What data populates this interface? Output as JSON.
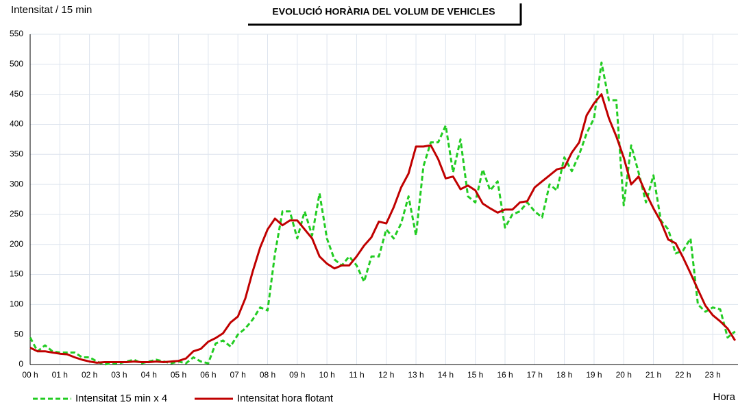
{
  "chart_data": {
    "type": "line",
    "title": "EVOLUCIÓ HORÀRIA DEL VOLUM  DE VEHICLES",
    "y_label": "Intensitat / 15 min",
    "x_label": "Hora",
    "x": [
      0,
      0.25,
      0.5,
      0.75,
      1,
      1.25,
      1.5,
      1.75,
      2,
      2.25,
      2.5,
      2.75,
      3,
      3.25,
      3.5,
      3.75,
      4,
      4.25,
      4.5,
      4.75,
      5,
      5.25,
      5.5,
      5.75,
      6,
      6.25,
      6.5,
      6.75,
      7,
      7.25,
      7.5,
      7.75,
      8,
      8.25,
      8.5,
      8.75,
      9,
      9.25,
      9.5,
      9.75,
      10,
      10.25,
      10.5,
      10.75,
      11,
      11.25,
      11.5,
      11.75,
      12,
      12.25,
      12.5,
      12.75,
      13,
      13.25,
      13.5,
      13.75,
      14,
      14.25,
      14.5,
      14.75,
      15,
      15.25,
      15.5,
      15.75,
      16,
      16.25,
      16.5,
      16.75,
      17,
      17.25,
      17.5,
      17.75,
      18,
      18.25,
      18.5,
      18.75,
      19,
      19.25,
      19.5,
      19.75,
      20,
      20.25,
      20.5,
      20.75,
      21,
      21.25,
      21.5,
      21.75,
      22,
      22.25,
      22.5,
      22.75,
      23,
      23.25,
      23.5,
      23.75
    ],
    "series": [
      {
        "name": "Intensitat 15 min x  4",
        "color": "#22cc22",
        "dashed": true,
        "values": [
          45,
          22,
          32,
          22,
          20,
          20,
          20,
          12,
          12,
          5,
          0,
          2,
          2,
          5,
          8,
          2,
          5,
          8,
          5,
          2,
          5,
          2,
          12,
          5,
          2,
          35,
          40,
          30,
          50,
          60,
          75,
          95,
          90,
          185,
          255,
          255,
          210,
          255,
          215,
          285,
          210,
          175,
          165,
          180,
          165,
          138,
          180,
          180,
          225,
          210,
          235,
          280,
          215,
          330,
          370,
          370,
          398,
          320,
          375,
          280,
          270,
          325,
          290,
          305,
          228,
          250,
          255,
          270,
          255,
          245,
          300,
          290,
          345,
          322,
          350,
          385,
          410,
          503,
          440,
          440,
          265,
          365,
          320,
          270,
          315,
          240,
          225,
          185,
          190,
          210,
          100,
          88,
          95,
          92,
          45,
          55
        ]
      },
      {
        "name": "Intensitat hora flotant",
        "color": "#c00000",
        "dashed": false,
        "values": [
          28,
          22,
          22,
          20,
          18,
          17,
          12,
          8,
          5,
          3,
          4,
          4,
          4,
          4,
          5,
          4,
          4,
          5,
          4,
          5,
          6,
          10,
          22,
          26,
          38,
          44,
          52,
          70,
          80,
          110,
          155,
          195,
          225,
          243,
          232,
          240,
          240,
          225,
          210,
          180,
          168,
          160,
          165,
          165,
          180,
          198,
          212,
          238,
          235,
          262,
          295,
          318,
          363,
          363,
          365,
          342,
          310,
          313,
          292,
          298,
          290,
          268,
          260,
          253,
          258,
          258,
          270,
          272,
          295,
          305,
          315,
          325,
          328,
          353,
          370,
          415,
          435,
          450,
          410,
          380,
          345,
          300,
          313,
          285,
          260,
          238,
          208,
          202,
          178,
          152,
          125,
          98,
          82,
          72,
          60,
          40
        ]
      }
    ],
    "xlim": [
      0,
      23.85
    ],
    "xticks": [
      {
        "value": 0,
        "label": "00 h"
      },
      {
        "value": 1,
        "label": "01 h"
      },
      {
        "value": 2,
        "label": "02 h"
      },
      {
        "value": 3,
        "label": "03 h"
      },
      {
        "value": 4,
        "label": "04 h"
      },
      {
        "value": 5,
        "label": "05 h"
      },
      {
        "value": 6,
        "label": "06 h"
      },
      {
        "value": 7,
        "label": "07 h"
      },
      {
        "value": 8,
        "label": "08 h"
      },
      {
        "value": 9,
        "label": "09 h"
      },
      {
        "value": 10,
        "label": "10 h"
      },
      {
        "value": 11,
        "label": "11 h"
      },
      {
        "value": 12,
        "label": "12 h"
      },
      {
        "value": 13,
        "label": "13 h"
      },
      {
        "value": 14,
        "label": "14 h"
      },
      {
        "value": 15,
        "label": "15 h"
      },
      {
        "value": 16,
        "label": "16 h"
      },
      {
        "value": 17,
        "label": "17 h"
      },
      {
        "value": 18,
        "label": "18 h"
      },
      {
        "value": 19,
        "label": "19 h"
      },
      {
        "value": 20,
        "label": "20 h"
      },
      {
        "value": 21,
        "label": "21 h"
      },
      {
        "value": 22,
        "label": "22 h"
      },
      {
        "value": 23,
        "label": "23 h"
      }
    ],
    "ylim": [
      0,
      550
    ],
    "yticks": [
      0,
      50,
      100,
      150,
      200,
      250,
      300,
      350,
      400,
      450,
      500,
      550
    ],
    "grid": true
  }
}
